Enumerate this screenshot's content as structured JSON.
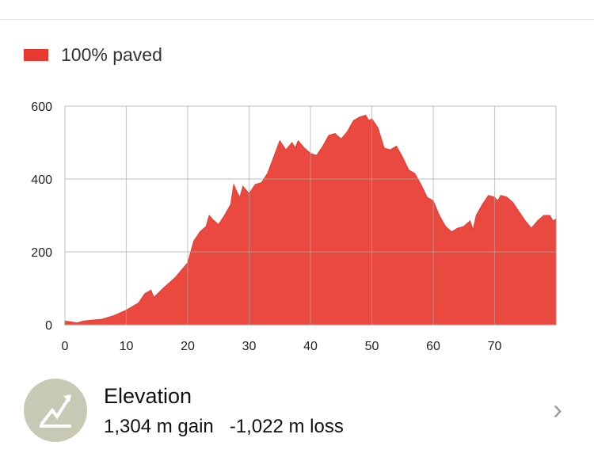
{
  "legend": {
    "label": "100% paved",
    "color": "#e8392f"
  },
  "chart_data": {
    "type": "area",
    "title": "",
    "xlabel": "",
    "ylabel": "",
    "xlim": [
      0,
      80
    ],
    "ylim": [
      0,
      600
    ],
    "xticks": [
      0,
      10,
      20,
      30,
      40,
      50,
      60,
      70
    ],
    "yticks": [
      0,
      200,
      400,
      600
    ],
    "grid": true,
    "legend": "top-left",
    "series": [
      {
        "name": "100% paved",
        "color": "#e8392f",
        "x": [
          0,
          1,
          2,
          3,
          4,
          6,
          8,
          10,
          12,
          13,
          14,
          14.5,
          16,
          18,
          19,
          20,
          21,
          22,
          23,
          23.5,
          24,
          25,
          26,
          27,
          27.5,
          28,
          28.5,
          29,
          30,
          31,
          32,
          33,
          34,
          35,
          36,
          37,
          37.5,
          38,
          39,
          40,
          41,
          42,
          43,
          44,
          45,
          46,
          47,
          48,
          49,
          49.5,
          50,
          51,
          52,
          53,
          54,
          55,
          56,
          57,
          58,
          59,
          60,
          61,
          62,
          63,
          64,
          65,
          66,
          66.5,
          67,
          68,
          69,
          70,
          70.5,
          71,
          72,
          73,
          74,
          75,
          76,
          77,
          78,
          79,
          79.5,
          80
        ],
        "y": [
          10,
          8,
          5,
          10,
          12,
          15,
          25,
          40,
          60,
          85,
          95,
          75,
          100,
          130,
          150,
          170,
          230,
          255,
          270,
          300,
          290,
          275,
          300,
          330,
          385,
          365,
          350,
          380,
          360,
          385,
          390,
          415,
          460,
          505,
          480,
          500,
          485,
          505,
          485,
          470,
          465,
          490,
          520,
          525,
          510,
          530,
          560,
          570,
          575,
          560,
          565,
          540,
          485,
          480,
          490,
          460,
          425,
          415,
          385,
          350,
          340,
          300,
          270,
          255,
          265,
          270,
          285,
          260,
          300,
          330,
          355,
          350,
          340,
          355,
          350,
          335,
          310,
          285,
          265,
          285,
          300,
          300,
          285,
          290
        ]
      }
    ]
  },
  "elevation": {
    "title": "Elevation",
    "gain": "1,304 m gain",
    "loss": "-1,022 m loss",
    "icon": "trending-up-icon"
  }
}
